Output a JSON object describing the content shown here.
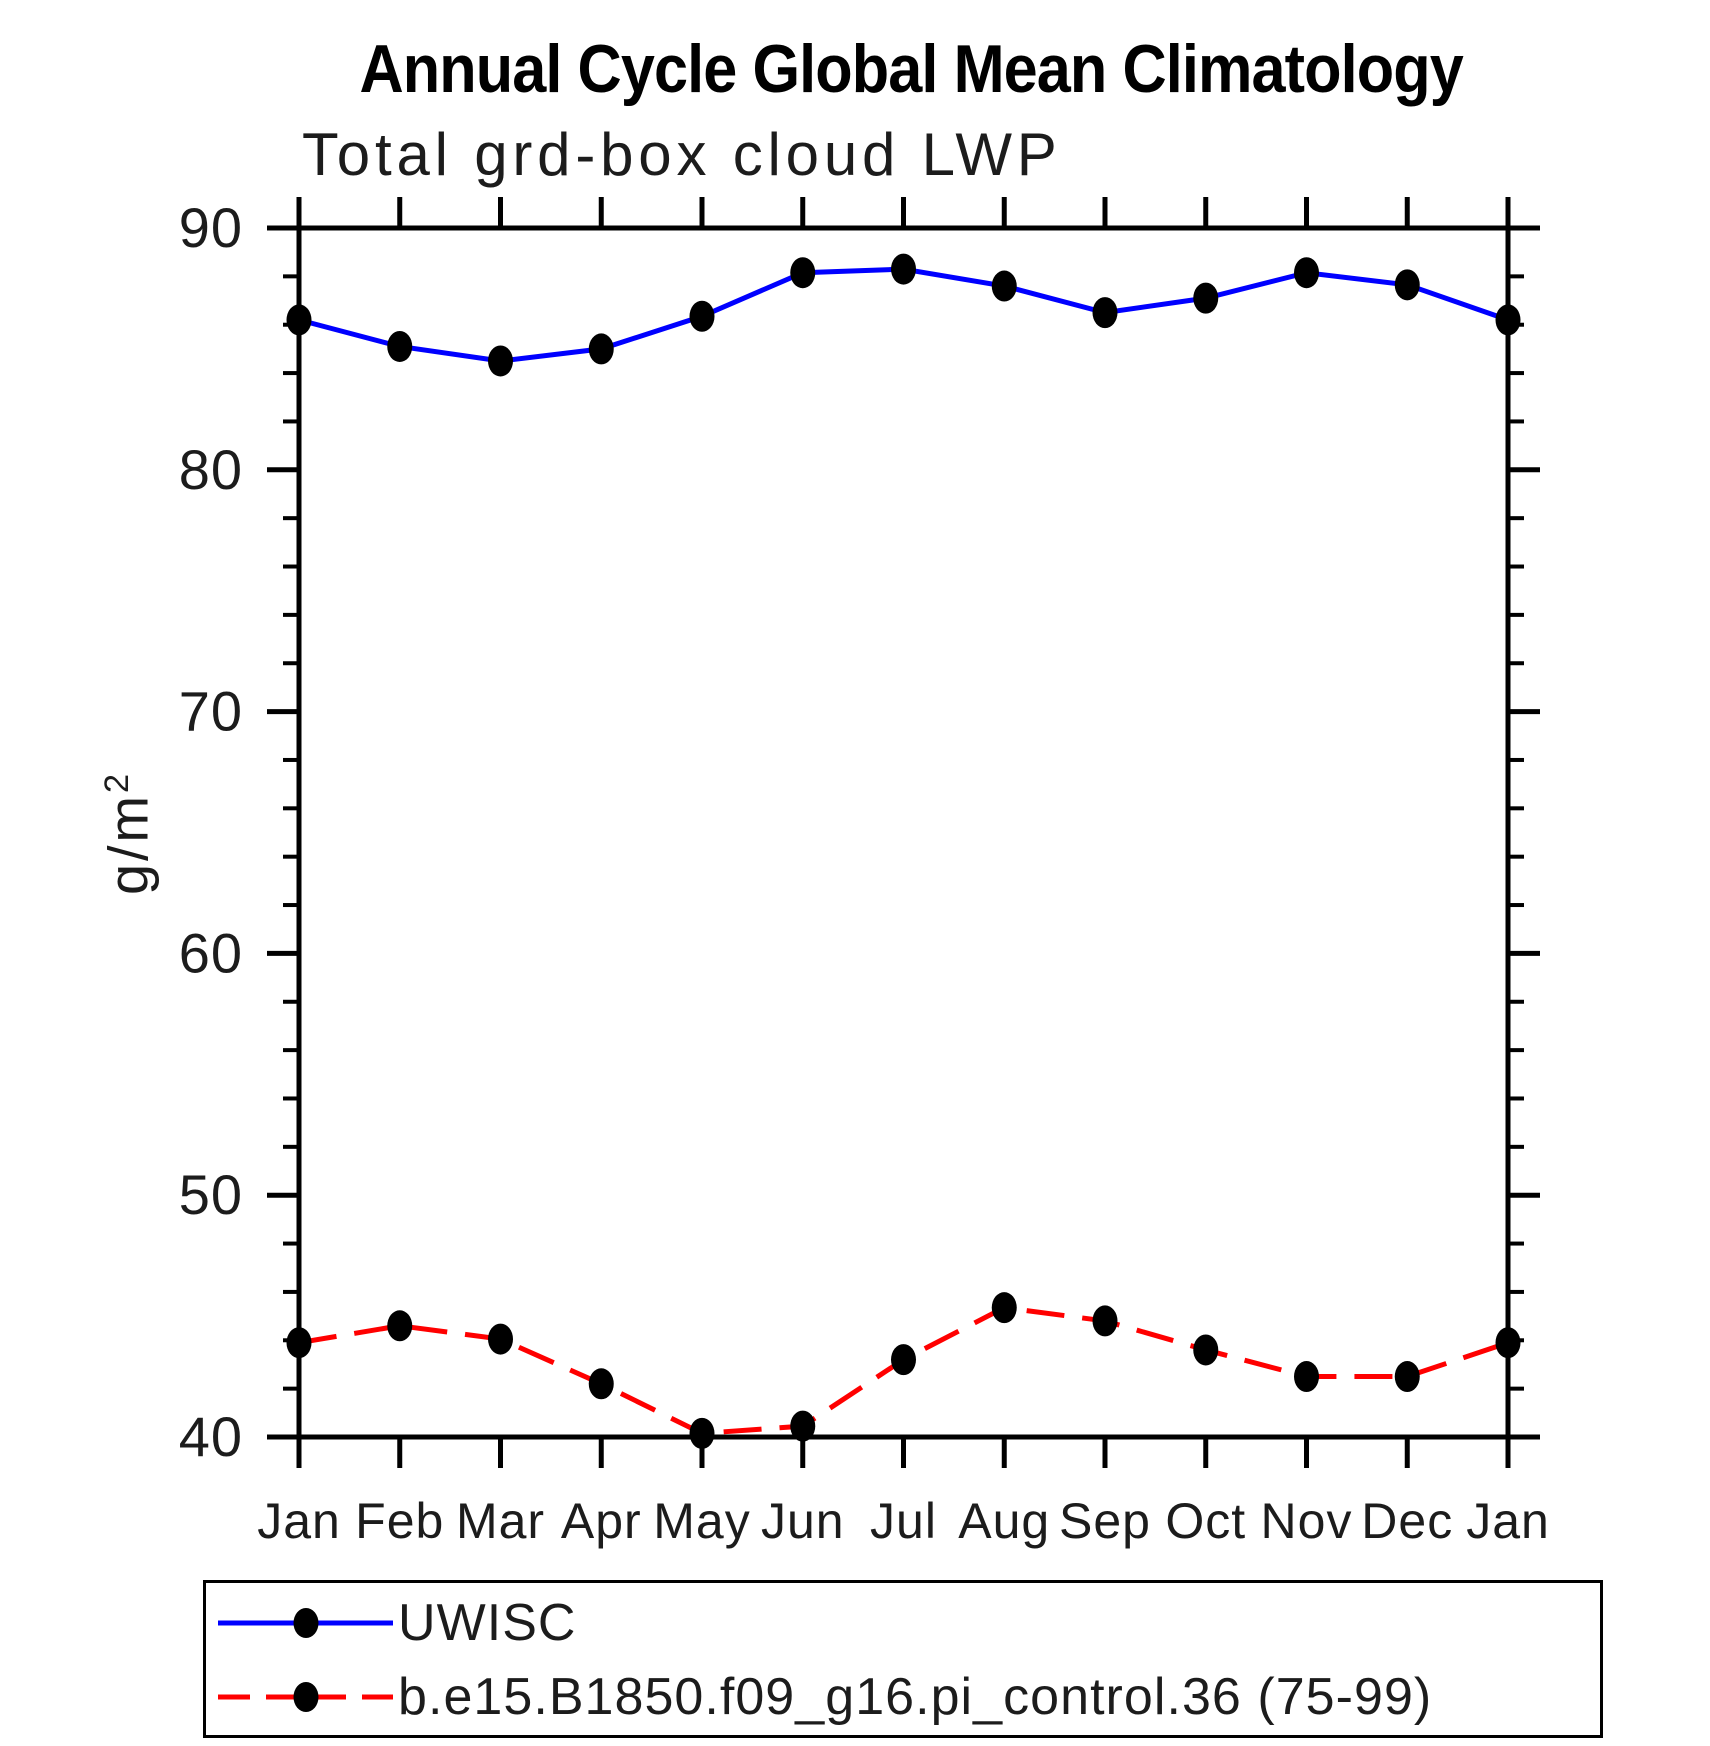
{
  "chart_data": {
    "type": "line",
    "title": "Annual Cycle Global Mean Climatology",
    "subtitle": "Total grd-box cloud LWP",
    "ylabel": "g/m²",
    "ylabel_base": "g/m",
    "ylabel_sup": "2",
    "categories": [
      "Jan",
      "Feb",
      "Mar",
      "Apr",
      "May",
      "Jun",
      "Jul",
      "Aug",
      "Sep",
      "Oct",
      "Nov",
      "Dec",
      "Jan"
    ],
    "ylim": [
      40,
      90
    ],
    "yticks_major": [
      40,
      50,
      60,
      70,
      80,
      90
    ],
    "ytick_minor_step": 2,
    "grid": false,
    "legend_position": "bottom-left",
    "axis_color": "#000000",
    "marker_shape": "filled-circle",
    "series": [
      {
        "name": "UWISC",
        "color": "#0000ff",
        "style": "solid",
        "marker_color": "#000000",
        "values": [
          86.2,
          85.1,
          84.5,
          85.0,
          86.35,
          88.15,
          88.3,
          87.6,
          86.5,
          87.1,
          88.15,
          87.65,
          86.2
        ]
      },
      {
        "name": "b.e15.B1850.f09_g16.pi_control.36 (75-99)",
        "color": "#ff0000",
        "style": "dashed",
        "marker_color": "#000000",
        "values": [
          43.9,
          44.6,
          44.05,
          42.2,
          40.15,
          40.45,
          43.2,
          45.35,
          44.8,
          43.6,
          42.5,
          42.5,
          43.9
        ]
      }
    ]
  }
}
